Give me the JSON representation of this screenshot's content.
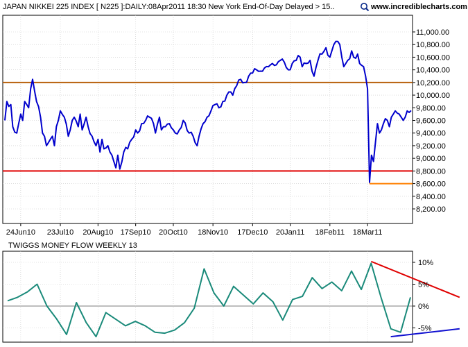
{
  "header": {
    "title": "JAPAN NIKKEI 225 INDEX [ N225 ]:DAILY:08Apr2011 18:30 New York End-Of-Day Delayed > 15..",
    "brand": "www.incrediblecharts.com",
    "brand_icon": "magnifier-icon"
  },
  "colors": {
    "price": "#0000cc",
    "resistance": "#b8600b",
    "support": "#e00000",
    "support_short": "#ff8000",
    "indicator": "#1a8a7a",
    "trend_down": "#e00000",
    "trend_up": "#1010d0",
    "grid": "#c8c8c8",
    "zero": "#7c7c7c"
  },
  "chart_data": [
    {
      "type": "line",
      "title": "JAPAN NIKKEI 225 INDEX [ N225 ]:DAILY:08Apr2011 18:30 New York End-Of-Day Delayed > 15..",
      "xlabel": "",
      "ylabel": "",
      "ylim": [
        8000,
        11200
      ],
      "yticks": [
        8200,
        8400,
        8600,
        8800,
        9000,
        9200,
        9400,
        9600,
        9800,
        10000,
        10200,
        10400,
        10600,
        10800,
        11000
      ],
      "ytick_labels": [
        "8,200.00",
        "8,400.00",
        "8,600.00",
        "8,800.00",
        "9,000.00",
        "9,200.00",
        "9,400.00",
        "9,600.00",
        "9,800.00",
        "10,000.00",
        "10,200.00",
        "10,400.00",
        "10,600.00",
        "10,800.00",
        "11,000.00"
      ],
      "xtick_labels": [
        "24Jun10",
        "23Jul10",
        "20Aug10",
        "17Sep10",
        "20Oct10",
        "18Nov10",
        "17Dec10",
        "20Jan11",
        "18Feb11",
        "18Mar11"
      ],
      "xtick_index": [
        8,
        28,
        47,
        66,
        85,
        105,
        125,
        144,
        164,
        183
      ],
      "n_points": 206,
      "grid": true,
      "hlines": [
        {
          "value": 10200,
          "role": "resistance"
        },
        {
          "value": 8800,
          "role": "support"
        },
        {
          "value": 8600,
          "role": "support_short",
          "from_index": 184
        }
      ],
      "series": [
        {
          "anchors": [
            [
              0,
              9600
            ],
            [
              1,
              9900
            ],
            [
              3,
              9850
            ],
            [
              4,
              9500
            ],
            [
              6,
              9400
            ],
            [
              8,
              9700
            ],
            [
              9,
              9600
            ],
            [
              10,
              9900
            ],
            [
              12,
              9800
            ],
            [
              13,
              10100
            ],
            [
              14,
              10250
            ],
            [
              16,
              9900
            ],
            [
              18,
              9650
            ],
            [
              19,
              9400
            ],
            [
              21,
              9200
            ],
            [
              22,
              9250
            ],
            [
              24,
              9350
            ],
            [
              25,
              9200
            ],
            [
              26,
              9500
            ],
            [
              28,
              9750
            ],
            [
              30,
              9650
            ],
            [
              32,
              9350
            ],
            [
              33,
              9450
            ],
            [
              34,
              9600
            ],
            [
              35,
              9650
            ],
            [
              37,
              9500
            ],
            [
              38,
              9700
            ],
            [
              39,
              9450
            ],
            [
              41,
              9650
            ],
            [
              42,
              9500
            ],
            [
              44,
              9350
            ],
            [
              46,
              9200
            ],
            [
              47,
              9300
            ],
            [
              48,
              9100
            ],
            [
              49,
              9300
            ],
            [
              50,
              9150
            ],
            [
              52,
              9200
            ],
            [
              53,
              9100
            ],
            [
              54,
              9050
            ],
            [
              55,
              8950
            ],
            [
              56,
              8850
            ],
            [
              57,
              9050
            ],
            [
              58,
              8830
            ],
            [
              60,
              9100
            ],
            [
              62,
              9150
            ],
            [
              64,
              9300
            ],
            [
              66,
              9450
            ],
            [
              67,
              9400
            ],
            [
              69,
              9550
            ],
            [
              71,
              9600
            ],
            [
              73,
              9650
            ],
            [
              75,
              9550
            ],
            [
              76,
              9400
            ],
            [
              78,
              9650
            ],
            [
              79,
              9450
            ],
            [
              81,
              9500
            ],
            [
              83,
              9550
            ],
            [
              85,
              9450
            ],
            [
              86,
              9400
            ],
            [
              88,
              9450
            ],
            [
              90,
              9600
            ],
            [
              93,
              9400
            ],
            [
              95,
              9350
            ],
            [
              96,
              9250
            ],
            [
              97,
              9200
            ],
            [
              98,
              9350
            ],
            [
              100,
              9550
            ],
            [
              102,
              9650
            ],
            [
              104,
              9750
            ],
            [
              106,
              9850
            ],
            [
              108,
              9800
            ],
            [
              110,
              9900
            ],
            [
              112,
              10000
            ],
            [
              114,
              10050
            ],
            [
              115,
              10000
            ],
            [
              117,
              10150
            ],
            [
              119,
              10250
            ],
            [
              121,
              10200
            ],
            [
              123,
              10300
            ],
            [
              125,
              10350
            ],
            [
              127,
              10400
            ],
            [
              129,
              10380
            ],
            [
              131,
              10430
            ],
            [
              133,
              10450
            ],
            [
              135,
              10500
            ],
            [
              137,
              10480
            ],
            [
              139,
              10550
            ],
            [
              141,
              10520
            ],
            [
              143,
              10400
            ],
            [
              145,
              10500
            ],
            [
              147,
              10550
            ],
            [
              149,
              10600
            ],
            [
              150,
              10450
            ],
            [
              152,
              10500
            ],
            [
              154,
              10550
            ],
            [
              156,
              10300
            ],
            [
              158,
              10550
            ],
            [
              160,
              10650
            ],
            [
              162,
              10750
            ],
            [
              164,
              10600
            ],
            [
              166,
              10800
            ],
            [
              168,
              10850
            ],
            [
              169,
              10800
            ],
            [
              170,
              10600
            ],
            [
              171,
              10450
            ],
            [
              172,
              10500
            ],
            [
              173,
              10550
            ],
            [
              175,
              10700
            ],
            [
              176,
              10600
            ],
            [
              178,
              10650
            ],
            [
              179,
              10500
            ],
            [
              181,
              10450
            ],
            [
              182,
              10300
            ],
            [
              183,
              10100
            ],
            [
              184,
              8620
            ],
            [
              185,
              9050
            ],
            [
              186,
              8950
            ],
            [
              187,
              9250
            ],
            [
              188,
              9550
            ],
            [
              189,
              9400
            ],
            [
              190,
              9450
            ],
            [
              191,
              9550
            ],
            [
              193,
              9600
            ],
            [
              194,
              9500
            ],
            [
              195,
              9650
            ],
            [
              196,
              9700
            ],
            [
              197,
              9750
            ],
            [
              199,
              9700
            ],
            [
              200,
              9650
            ],
            [
              201,
              9600
            ],
            [
              202,
              9650
            ],
            [
              203,
              9750
            ]
          ]
        }
      ]
    },
    {
      "type": "line",
      "title": "TWIGGS MONEY FLOW WEEKLY 13",
      "xlabel": "",
      "ylabel": "",
      "ylim": [
        -7,
        14
      ],
      "yticks": [
        -5,
        0,
        5,
        10
      ],
      "ytick_labels": [
        "-5%",
        "0%",
        "5%",
        "10%"
      ],
      "grid": true,
      "n_points": 42,
      "series": [
        {
          "values": [
            1.2,
            2.0,
            3.2,
            5.0,
            0.0,
            -3.0,
            -6.5,
            0.8,
            -3.8,
            -7.0,
            -1.5,
            -3.0,
            -4.5,
            -3.5,
            -4.5,
            -6.0,
            -6.2,
            -5.5,
            -3.8,
            -0.5,
            8.5,
            3.0,
            0.0,
            4.5,
            2.5,
            0.5,
            3.0,
            1.0,
            -3.2,
            1.5,
            2.2,
            6.5,
            4.0,
            5.5,
            3.5,
            8.0,
            3.8,
            9.8,
            2.0,
            -5.2,
            -6.0,
            2.0
          ]
        }
      ],
      "trendlines": [
        {
          "role": "trend_down",
          "from": [
            37,
            10.2
          ],
          "to": [
            46,
            2.0
          ]
        },
        {
          "role": "trend_up",
          "from": [
            39,
            -7.0
          ],
          "to": [
            46,
            -5.2
          ]
        }
      ]
    }
  ]
}
